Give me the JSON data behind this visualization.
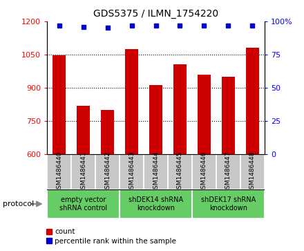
{
  "title": "GDS5375 / ILMN_1754220",
  "samples": [
    "GSM1486440",
    "GSM1486441",
    "GSM1486442",
    "GSM1486443",
    "GSM1486444",
    "GSM1486445",
    "GSM1486446",
    "GSM1486447",
    "GSM1486448"
  ],
  "counts": [
    1047,
    820,
    800,
    1075,
    912,
    1005,
    960,
    950,
    1080
  ],
  "percentile_ranks": [
    97,
    96,
    95,
    97,
    97,
    97,
    97,
    97,
    97
  ],
  "ylim_left": [
    600,
    1200
  ],
  "ylim_right": [
    0,
    100
  ],
  "yticks_left": [
    600,
    750,
    900,
    1050,
    1200
  ],
  "yticks_right": [
    0,
    25,
    50,
    75,
    100
  ],
  "bar_color": "#cc0000",
  "dot_color": "#0000cc",
  "groups": [
    {
      "label": "empty vector\nshRNA control",
      "start": 0,
      "end": 3
    },
    {
      "label": "shDEK14 shRNA\nknockdown",
      "start": 3,
      "end": 6
    },
    {
      "label": "shDEK17 shRNA\nknockdown",
      "start": 6,
      "end": 9
    }
  ],
  "protocol_label": "protocol",
  "legend_count_label": "count",
  "legend_pct_label": "percentile rank within the sample",
  "sample_box_color": "#c8c8c8",
  "protocol_box_color": "#66cc66",
  "gridline_color": "#000000"
}
